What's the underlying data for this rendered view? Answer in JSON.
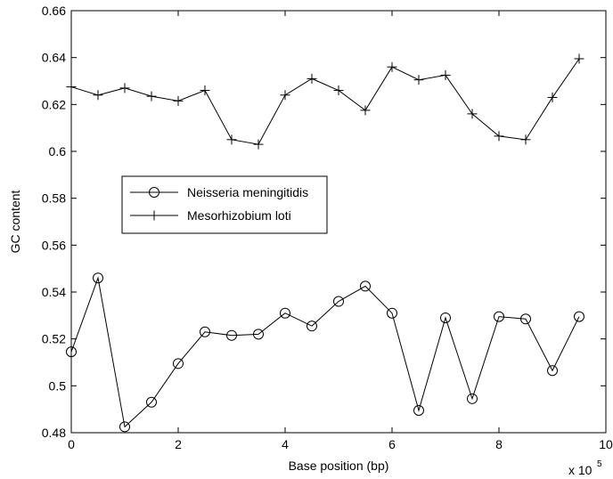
{
  "chart_data": {
    "type": "line",
    "xlabel": "Base position (bp)",
    "ylabel": "GC content",
    "x_multiplier": {
      "base": "x 10",
      "exponent": "5"
    },
    "xlim": [
      0,
      10
    ],
    "ylim": [
      0.48,
      0.66
    ],
    "xticks": [
      0,
      2,
      4,
      6,
      8,
      10
    ],
    "yticks": [
      0.48,
      0.5,
      0.52,
      0.54,
      0.56,
      0.58,
      0.6,
      0.62,
      0.64,
      0.66
    ],
    "ytick_labels": [
      "0.48",
      "0.5",
      "0.52",
      "0.54",
      "0.56",
      "0.58",
      "0.6",
      "0.62",
      "0.64",
      "0.66"
    ],
    "grid": false,
    "legend_position": "center-left",
    "x": [
      0,
      0.5,
      1,
      1.5,
      2,
      2.5,
      3,
      3.5,
      4,
      4.5,
      5,
      5.5,
      6,
      6.5,
      7,
      7.5,
      8,
      8.5,
      9,
      9.5
    ],
    "series": [
      {
        "name": "Neisseria meningitidis",
        "marker": "circle",
        "color": "#000000",
        "values": [
          0.5145,
          0.546,
          0.4825,
          0.493,
          0.5095,
          0.523,
          0.5215,
          0.522,
          0.531,
          0.5255,
          0.536,
          0.5425,
          0.531,
          0.4895,
          0.529,
          0.4945,
          0.5295,
          0.5285,
          0.5065,
          0.5295
        ]
      },
      {
        "name": "Mesorhizobium loti",
        "marker": "plus",
        "color": "#000000",
        "values": [
          0.6275,
          0.624,
          0.627,
          0.6235,
          0.6215,
          0.626,
          0.605,
          0.603,
          0.624,
          0.631,
          0.626,
          0.6175,
          0.636,
          0.6305,
          0.6325,
          0.616,
          0.6065,
          0.605,
          0.623,
          0.6395
        ]
      }
    ]
  }
}
